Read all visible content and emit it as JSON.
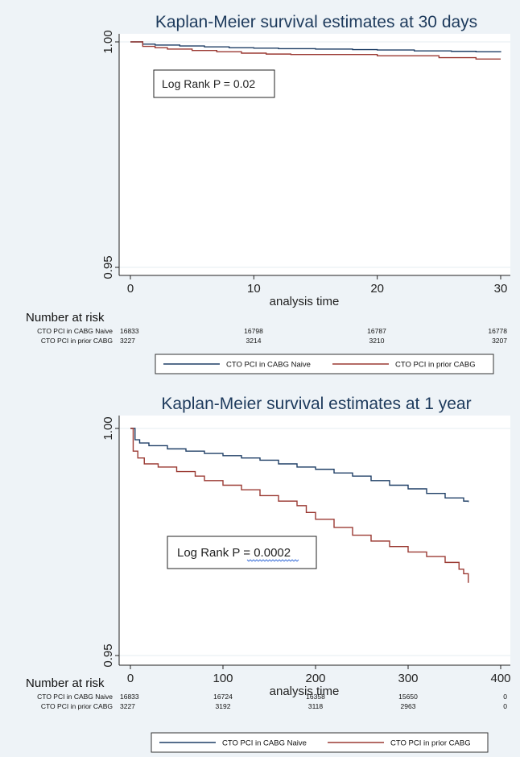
{
  "colors": {
    "background": "#eef3f7",
    "plot_background": "#ffffff",
    "naive_line": "#1f3f66",
    "prior_line": "#9b3a33",
    "gridline": "#e6edf2"
  },
  "chart_data": [
    {
      "type": "line",
      "title": "Kaplan-Meier survival estimates at 30 days",
      "xlabel": "analysis time",
      "ylabel": "",
      "xlim": [
        0,
        30
      ],
      "ylim": [
        0.95,
        1.0
      ],
      "x_ticks": [
        0,
        10,
        20,
        30
      ],
      "y_ticks": [
        0.95,
        1.0
      ],
      "x_tick_labels": [
        "0",
        "10",
        "20",
        "30"
      ],
      "y_tick_labels": [
        "0.95",
        "1.00"
      ],
      "step": true,
      "annotation": "Log Rank P = 0.02",
      "series": [
        {
          "name": "CTO PCI in CABG Naive",
          "color_key": "naive_line",
          "points": [
            [
              0,
              1.0
            ],
            [
              1,
              0.9995
            ],
            [
              2,
              0.9993
            ],
            [
              4,
              0.9991
            ],
            [
              6,
              0.9989
            ],
            [
              8,
              0.9987
            ],
            [
              10,
              0.9986
            ],
            [
              12,
              0.9985
            ],
            [
              15,
              0.9984
            ],
            [
              18,
              0.9983
            ],
            [
              20,
              0.9982
            ],
            [
              23,
              0.998
            ],
            [
              26,
              0.9979
            ],
            [
              28,
              0.9978
            ],
            [
              30,
              0.9977
            ]
          ]
        },
        {
          "name": "CTO PCI in prior CABG",
          "color_key": "prior_line",
          "points": [
            [
              0,
              1.0
            ],
            [
              1,
              0.999
            ],
            [
              2,
              0.9987
            ],
            [
              3,
              0.9984
            ],
            [
              5,
              0.9981
            ],
            [
              7,
              0.9978
            ],
            [
              9,
              0.9975
            ],
            [
              11,
              0.9973
            ],
            [
              13,
              0.9972
            ],
            [
              15,
              0.9972
            ],
            [
              20,
              0.9969
            ],
            [
              25,
              0.9965
            ],
            [
              28,
              0.9962
            ],
            [
              30,
              0.9962
            ]
          ]
        }
      ],
      "risk_table": {
        "heading": "Number at risk",
        "times": [
          0,
          10,
          20,
          30
        ],
        "rows": [
          {
            "label": "CTO PCI in CABG Naive",
            "values": [
              "16833",
              "16798",
              "16787",
              "16778"
            ]
          },
          {
            "label": "CTO PCI in prior CABG",
            "values": [
              "3227",
              "3214",
              "3210",
              "3207"
            ]
          }
        ]
      },
      "legend": [
        "CTO PCI in CABG Naive",
        "CTO PCI in prior CABG"
      ],
      "legend_placement": "bottom"
    },
    {
      "type": "line",
      "title": "Kaplan-Meier survival estimates at 1 year",
      "xlabel": "analysis time",
      "ylabel": "",
      "xlim": [
        0,
        400
      ],
      "ylim": [
        0.95,
        1.0
      ],
      "x_ticks": [
        0,
        100,
        200,
        300,
        400
      ],
      "y_ticks": [
        0.95,
        1.0
      ],
      "x_tick_labels": [
        "0",
        "100",
        "200",
        "300",
        "400"
      ],
      "y_tick_labels": [
        "0.95",
        "1.00"
      ],
      "step": true,
      "annotation_parts": [
        "Log Rank P = ",
        "0.0002"
      ],
      "series": [
        {
          "name": "CTO PCI in CABG Naive",
          "color_key": "naive_line",
          "points": [
            [
              0,
              1.0
            ],
            [
              5,
              0.9975
            ],
            [
              10,
              0.9968
            ],
            [
              20,
              0.9962
            ],
            [
              40,
              0.9955
            ],
            [
              60,
              0.995
            ],
            [
              80,
              0.9945
            ],
            [
              100,
              0.994
            ],
            [
              120,
              0.9935
            ],
            [
              140,
              0.993
            ],
            [
              160,
              0.9922
            ],
            [
              180,
              0.9915
            ],
            [
              200,
              0.991
            ],
            [
              220,
              0.9902
            ],
            [
              240,
              0.9895
            ],
            [
              260,
              0.9885
            ],
            [
              280,
              0.9875
            ],
            [
              300,
              0.9867
            ],
            [
              320,
              0.9857
            ],
            [
              340,
              0.9847
            ],
            [
              360,
              0.984
            ],
            [
              365,
              0.9838
            ]
          ]
        },
        {
          "name": "CTO PCI in prior CABG",
          "color_key": "prior_line",
          "points": [
            [
              0,
              1.0
            ],
            [
              3,
              0.995
            ],
            [
              8,
              0.9935
            ],
            [
              15,
              0.9922
            ],
            [
              30,
              0.9915
            ],
            [
              50,
              0.9905
            ],
            [
              70,
              0.9895
            ],
            [
              80,
              0.9885
            ],
            [
              100,
              0.9875
            ],
            [
              120,
              0.9865
            ],
            [
              140,
              0.9852
            ],
            [
              160,
              0.984
            ],
            [
              180,
              0.983
            ],
            [
              190,
              0.9815
            ],
            [
              200,
              0.98
            ],
            [
              220,
              0.9782
            ],
            [
              240,
              0.9765
            ],
            [
              260,
              0.9752
            ],
            [
              280,
              0.974
            ],
            [
              300,
              0.9728
            ],
            [
              320,
              0.9718
            ],
            [
              340,
              0.9705
            ],
            [
              355,
              0.969
            ],
            [
              360,
              0.968
            ],
            [
              365,
              0.966
            ]
          ]
        }
      ],
      "risk_table": {
        "heading": "Number at risk",
        "times": [
          0,
          100,
          200,
          300,
          400
        ],
        "rows": [
          {
            "label": "CTO PCI in CABG Naive",
            "values": [
              "16833",
              "16724",
              "16358",
              "15650",
              "0"
            ]
          },
          {
            "label": "CTO PCI in prior CABG",
            "values": [
              "3227",
              "3192",
              "3118",
              "2963",
              "0"
            ]
          }
        ]
      },
      "legend": [
        "CTO PCI in CABG Naive",
        "CTO PCI in prior CABG"
      ],
      "legend_placement": "bottom"
    }
  ]
}
